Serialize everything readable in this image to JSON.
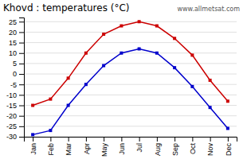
{
  "chart_data": {
    "type": "line",
    "title": "Khovd : temperatures (°C)",
    "categories": [
      "Jan",
      "Feb",
      "Mar",
      "Apr",
      "May",
      "Jun",
      "Jul",
      "Aug",
      "Sep",
      "Oct",
      "Nov",
      "Dec"
    ],
    "series": [
      {
        "color": "#cc0000",
        "marker": "square",
        "values": [
          -15,
          -12,
          -2,
          10,
          19,
          23,
          25,
          23,
          17,
          9,
          -3,
          -13
        ]
      },
      {
        "color": "#0000cc",
        "marker": "square",
        "values": [
          -29,
          -27,
          -15,
          -5,
          4,
          10,
          12,
          10,
          3,
          -6,
          -16,
          -26
        ]
      }
    ],
    "ylim": [
      -30,
      27
    ],
    "yticks": [
      -30,
      -25,
      -20,
      -15,
      -10,
      -5,
      0,
      5,
      10,
      15,
      20,
      25
    ],
    "grid": true,
    "annotations": [
      "www.allmetsat.com"
    ]
  }
}
